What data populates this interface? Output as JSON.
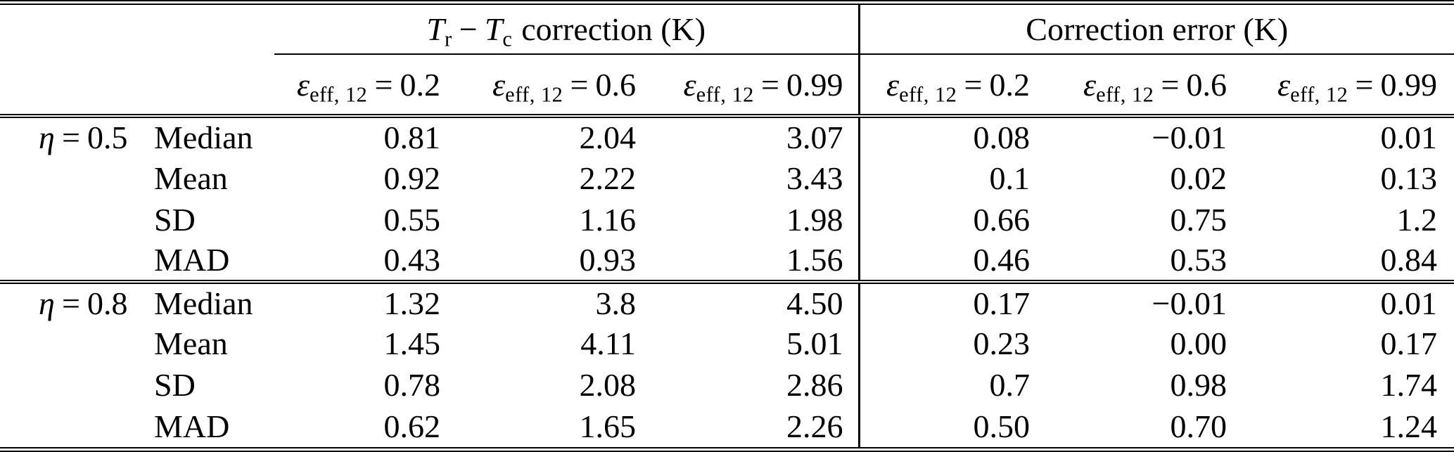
{
  "table": {
    "col_group_headers": {
      "left": {
        "sym1": "T",
        "sub1": "r",
        "op": "−",
        "sym2": "T",
        "sub2": "c",
        "suffix": "correction (K)"
      },
      "right": "Correction error (K)"
    },
    "eps_headers": {
      "symbol": "ε",
      "subscript": "eff, 12",
      "op": "=",
      "values": [
        "0.2",
        "0.6",
        "0.99",
        "0.2",
        "0.6",
        "0.99"
      ]
    },
    "row_groups": [
      {
        "symbol": "η",
        "op": "=",
        "value": "0.5",
        "rows": [
          {
            "label": "Median",
            "values": [
              "0.81",
              "2.04",
              "3.07",
              "0.08",
              "−0.01",
              "0.01"
            ]
          },
          {
            "label": "Mean",
            "values": [
              "0.92",
              "2.22",
              "3.43",
              "0.1",
              "0.02",
              "0.13"
            ]
          },
          {
            "label": "SD",
            "values": [
              "0.55",
              "1.16",
              "1.98",
              "0.66",
              "0.75",
              "1.2"
            ]
          },
          {
            "label": "MAD",
            "values": [
              "0.43",
              "0.93",
              "1.56",
              "0.46",
              "0.53",
              "0.84"
            ]
          }
        ]
      },
      {
        "symbol": "η",
        "op": "=",
        "value": "0.8",
        "rows": [
          {
            "label": "Median",
            "values": [
              "1.32",
              "3.8",
              "4.50",
              "0.17",
              "−0.01",
              "0.01"
            ]
          },
          {
            "label": "Mean",
            "values": [
              "1.45",
              "4.11",
              "5.01",
              "0.23",
              "0.00",
              "0.17"
            ]
          },
          {
            "label": "SD",
            "values": [
              "0.78",
              "2.08",
              "2.86",
              "0.7",
              "0.98",
              "1.74"
            ]
          },
          {
            "label": "MAD",
            "values": [
              "0.62",
              "1.65",
              "2.26",
              "0.50",
              "0.70",
              "1.24"
            ]
          }
        ]
      }
    ]
  }
}
